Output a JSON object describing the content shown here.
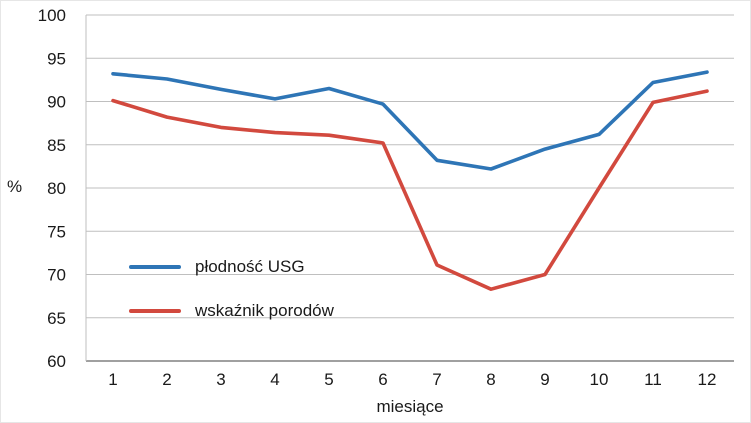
{
  "chart_data": {
    "type": "line",
    "categories": [
      "1",
      "2",
      "3",
      "4",
      "5",
      "6",
      "7",
      "8",
      "9",
      "10",
      "11",
      "12"
    ],
    "xlabel": "miesiące",
    "ylabel": "%",
    "ylim": [
      60,
      100
    ],
    "ytick_step": 5,
    "grid": true,
    "legend_position": "inside-left-bottom",
    "colors": {
      "gridline": "#bfbfbf",
      "axis_line": "#808080",
      "tick_text": "#1a1a1a"
    },
    "series": [
      {
        "name": "płodność USG",
        "color": "#2e75b6",
        "values": [
          93.2,
          92.6,
          91.4,
          90.3,
          91.5,
          89.7,
          83.2,
          82.2,
          84.5,
          86.2,
          92.2,
          93.4
        ]
      },
      {
        "name": "wskaźnik porodów",
        "color": "#d2493e",
        "values": [
          90.1,
          88.2,
          87.0,
          86.4,
          86.1,
          85.2,
          71.1,
          68.3,
          70.0,
          80.0,
          89.9,
          91.2
        ]
      }
    ]
  }
}
